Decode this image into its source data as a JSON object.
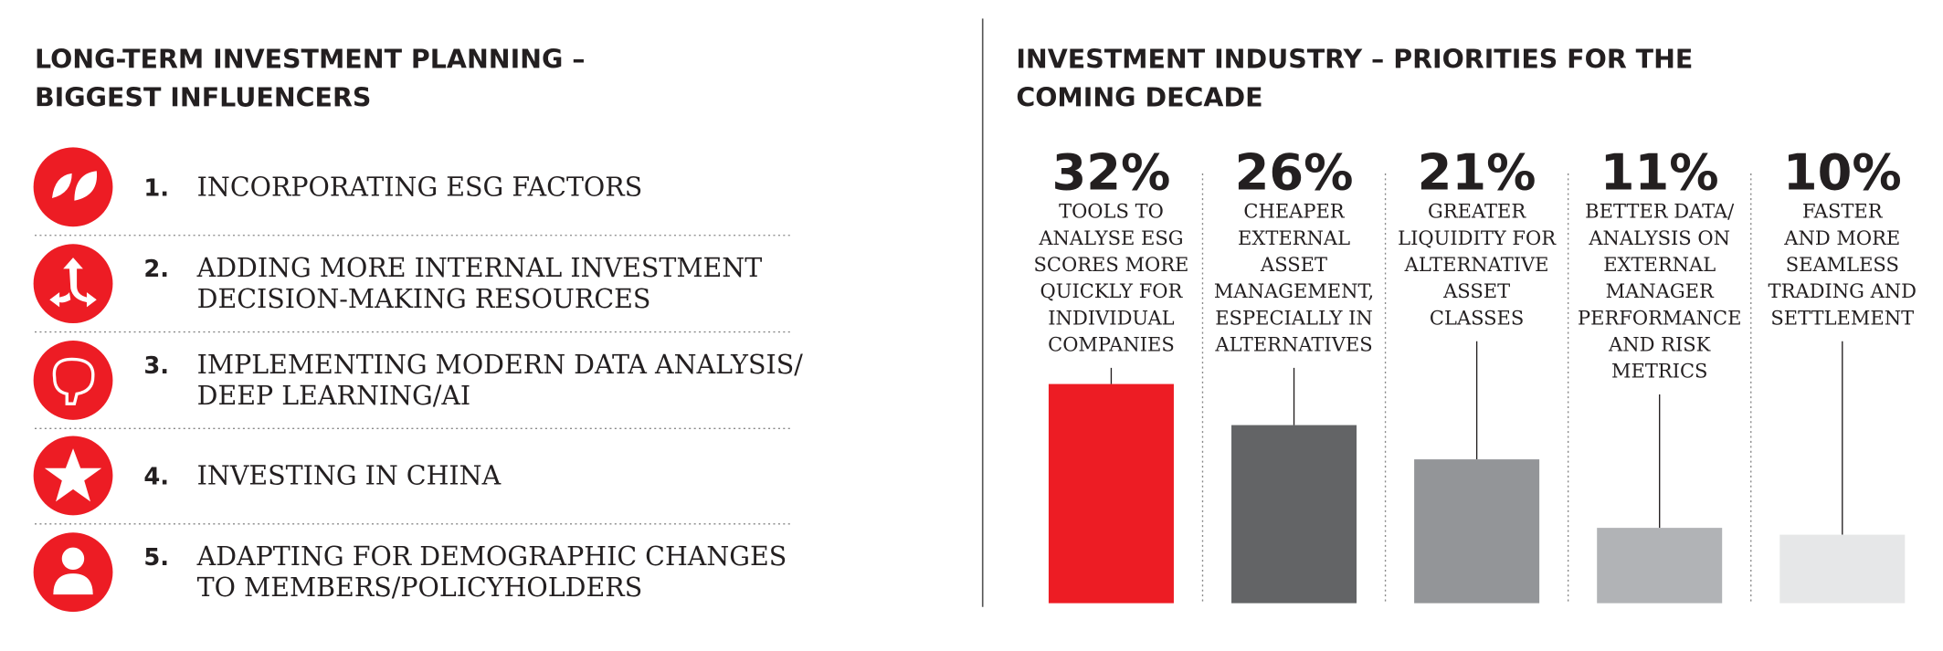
{
  "influencers": {
    "title": [
      "LONG-TERM INVESTMENT PLANNING –",
      "BIGGEST INFLUENCERS"
    ],
    "items": [
      {
        "number": "1.",
        "lines": [
          "INCORPORATING ESG FACTORS"
        ]
      },
      {
        "number": "2.",
        "lines": [
          "ADDING MORE INTERNAL INVESTMENT",
          "DECISION-MAKING RESOURCES"
        ]
      },
      {
        "number": "3.",
        "lines": [
          "IMPLEMENTING MODERN DATA ANALYSIS/",
          "DEEP LEARNING/AI"
        ]
      },
      {
        "number": "4.",
        "lines": [
          "INVESTING IN CHINA"
        ]
      },
      {
        "number": "5.",
        "lines": [
          "ADAPTING FOR DEMOGRAPHIC CHANGES",
          "TO MEMBERS/POLICYHOLDERS"
        ]
      }
    ]
  },
  "chart_data": {
    "type": "bar",
    "title": [
      "INVESTMENT INDUSTRY – PRIORITIES FOR THE",
      "COMING DECADE"
    ],
    "categories": [
      [
        "TOOLS TO",
        "ANALYSE ESG",
        "SCORES MORE",
        "QUICKLY FOR",
        "INDIVIDUAL",
        "COMPANIES"
      ],
      [
        "CHEAPER",
        "EXTERNAL",
        "ASSET",
        "MANAGEMENT,",
        "ESPECIALLY IN",
        "ALTERNATIVES"
      ],
      [
        "GREATER",
        "LIQUIDITY FOR",
        "ALTERNATIVE",
        "ASSET",
        "CLASSES"
      ],
      [
        "BETTER DATA/",
        "ANALYSIS ON",
        "EXTERNAL",
        "MANAGER",
        "PERFORMANCE",
        "AND RISK",
        "METRICS"
      ],
      [
        "FASTER",
        "AND MORE",
        "SEAMLESS",
        "TRADING AND",
        "SETTLEMENT"
      ]
    ],
    "values": [
      32,
      26,
      21,
      11,
      10
    ],
    "value_labels": [
      "32%",
      "26%",
      "21%",
      "11%",
      "10%"
    ],
    "colors": [
      "#ed1c24",
      "#636466",
      "#939598",
      "#b1b3b6",
      "#e6e7e8"
    ]
  }
}
